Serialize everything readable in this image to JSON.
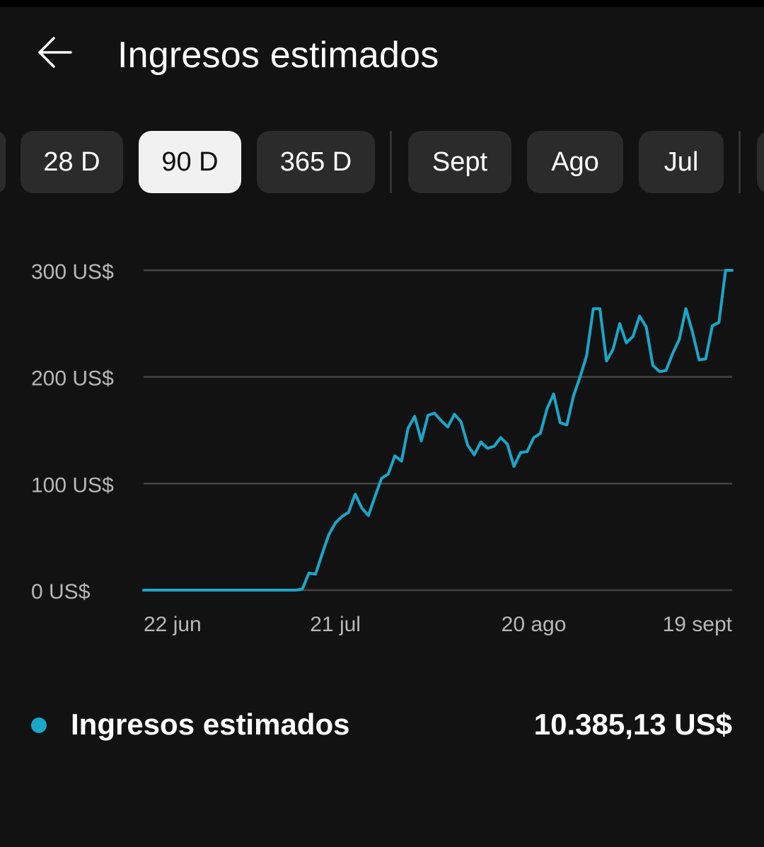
{
  "header": {
    "title": "Ingresos estimados",
    "back_icon": "arrow-left-icon"
  },
  "range_chips": [
    {
      "label": "28 D",
      "selected": false
    },
    {
      "label": "90 D",
      "selected": true
    },
    {
      "label": "365 D",
      "selected": false
    }
  ],
  "month_chips": [
    {
      "label": "Sept",
      "selected": false
    },
    {
      "label": "Ago",
      "selected": false
    },
    {
      "label": "Jul",
      "selected": false
    }
  ],
  "colors": {
    "background": "#121212",
    "chip": "#2b2b2b",
    "chip_selected": "#f1f1f1",
    "series": "#1aa7c9",
    "grid": "#454545",
    "axis_text": "#b8b8b8"
  },
  "chart_data": {
    "type": "line",
    "y_tick_labels": [
      "300 US$",
      "200 US$",
      "100 US$",
      "0 US$"
    ],
    "y_ticks": [
      300,
      200,
      100,
      0
    ],
    "ylim": [
      0,
      300
    ],
    "x_tick_labels": [
      "22 jun",
      "21 jul",
      "20 ago",
      "19 sept"
    ],
    "x_ticks": [
      "2024-06-22",
      "2024-07-21",
      "2024-08-20",
      "2024-09-19"
    ],
    "xlim": [
      "2024-06-22",
      "2024-09-19"
    ],
    "grid": true,
    "series": [
      {
        "name": "Ingresos estimados",
        "x": [
          "2024-06-22",
          "2024-06-23",
          "2024-06-24",
          "2024-06-25",
          "2024-06-26",
          "2024-06-27",
          "2024-06-28",
          "2024-06-29",
          "2024-06-30",
          "2024-07-01",
          "2024-07-02",
          "2024-07-03",
          "2024-07-04",
          "2024-07-05",
          "2024-07-06",
          "2024-07-07",
          "2024-07-08",
          "2024-07-09",
          "2024-07-10",
          "2024-07-11",
          "2024-07-12",
          "2024-07-13",
          "2024-07-14",
          "2024-07-15",
          "2024-07-16",
          "2024-07-17",
          "2024-07-18",
          "2024-07-19",
          "2024-07-20",
          "2024-07-21",
          "2024-07-22",
          "2024-07-23",
          "2024-07-24",
          "2024-07-25",
          "2024-07-26",
          "2024-07-27",
          "2024-07-28",
          "2024-07-29",
          "2024-07-30",
          "2024-07-31",
          "2024-08-01",
          "2024-08-02",
          "2024-08-03",
          "2024-08-04",
          "2024-08-05",
          "2024-08-06",
          "2024-08-07",
          "2024-08-08",
          "2024-08-09",
          "2024-08-10",
          "2024-08-11",
          "2024-08-12",
          "2024-08-13",
          "2024-08-14",
          "2024-08-15",
          "2024-08-16",
          "2024-08-17",
          "2024-08-18",
          "2024-08-19",
          "2024-08-20",
          "2024-08-21",
          "2024-08-22",
          "2024-08-23",
          "2024-08-24",
          "2024-08-25",
          "2024-08-26",
          "2024-08-27",
          "2024-08-28",
          "2024-08-29",
          "2024-08-30",
          "2024-08-31",
          "2024-09-01",
          "2024-09-02",
          "2024-09-03",
          "2024-09-04",
          "2024-09-05",
          "2024-09-06",
          "2024-09-07",
          "2024-09-08",
          "2024-09-09",
          "2024-09-10",
          "2024-09-11",
          "2024-09-12",
          "2024-09-13",
          "2024-09-14",
          "2024-09-15",
          "2024-09-16",
          "2024-09-17",
          "2024-09-18",
          "2024-09-19"
        ],
        "y": [
          0,
          0,
          0,
          0,
          0,
          0,
          0,
          0,
          0,
          0,
          0,
          0,
          0,
          0,
          0,
          0,
          0,
          0,
          0,
          0,
          0,
          0,
          0,
          0,
          1,
          16,
          15,
          34,
          52,
          63,
          69,
          73,
          90,
          77,
          70,
          88,
          105,
          109,
          126,
          121,
          152,
          163,
          140,
          164,
          166,
          159,
          153,
          165,
          158,
          136,
          127,
          139,
          133,
          135,
          143,
          137,
          116,
          129,
          130,
          143,
          147,
          170,
          184,
          157,
          155,
          182,
          200,
          220,
          264,
          264,
          215,
          226,
          250,
          232,
          238,
          257,
          247,
          211,
          205,
          206,
          222,
          235,
          264,
          242,
          216,
          217,
          248,
          251,
          300,
          300
        ]
      }
    ],
    "total_label": "10.385,13 US$"
  },
  "legend": {
    "label": "Ingresos estimados",
    "total": "10.385,13 US$"
  }
}
